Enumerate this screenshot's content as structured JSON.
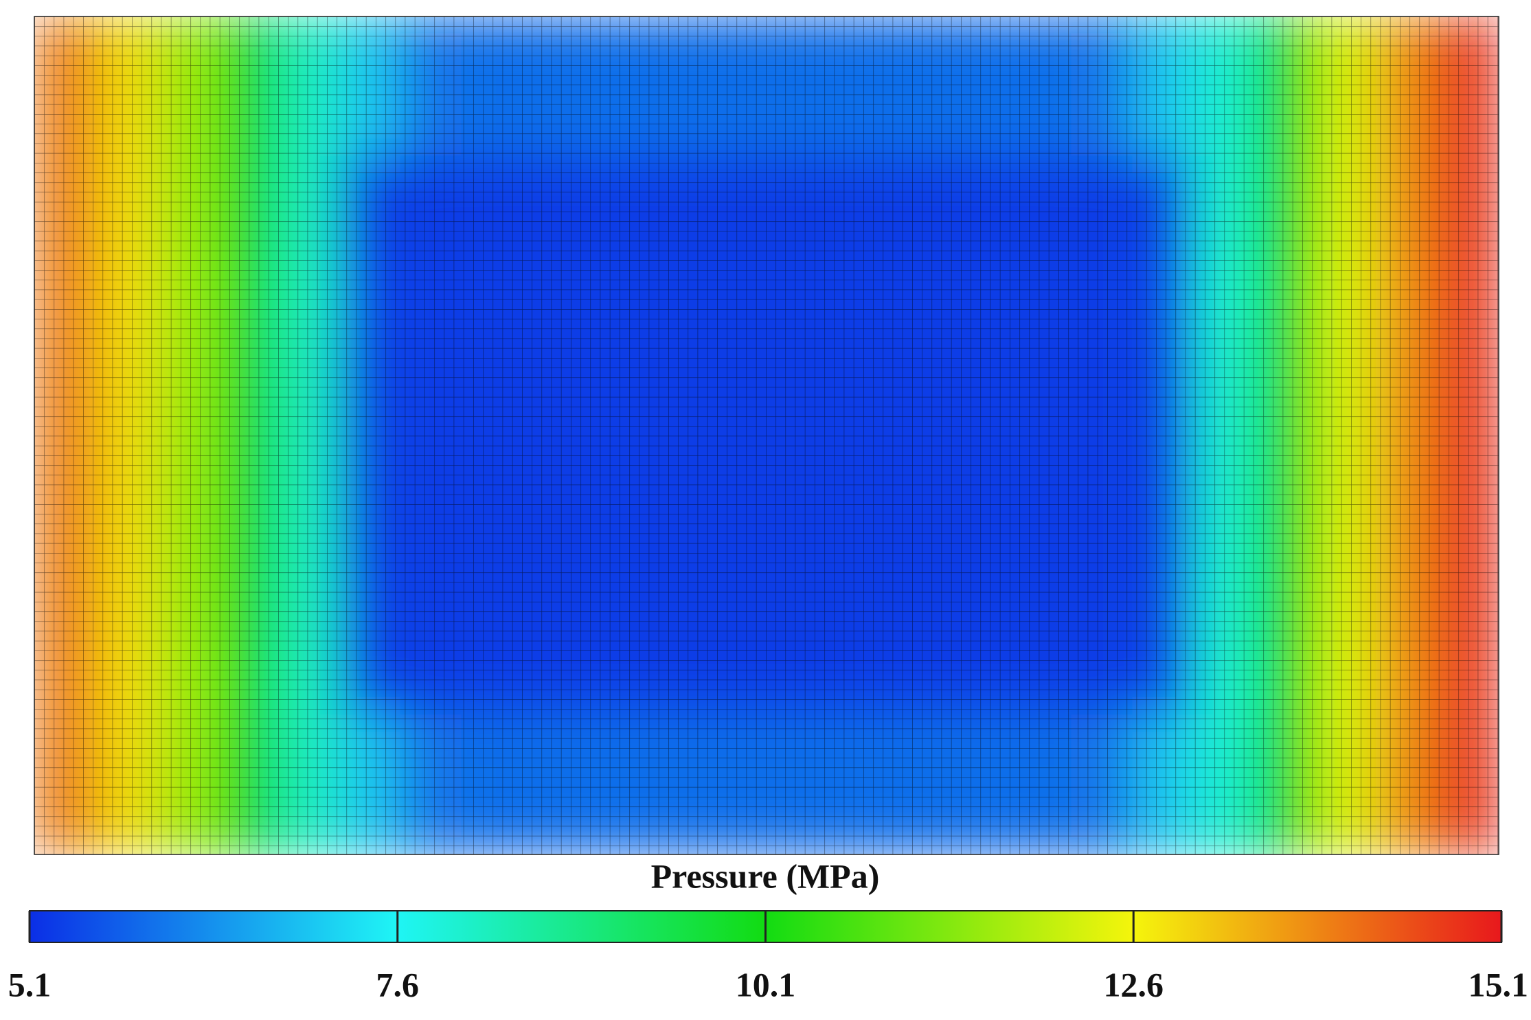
{
  "chart_data": {
    "type": "heatmap",
    "title": "Pressure (MPa)",
    "colorscale": [
      "#0b2ee6",
      "#1ff5f5",
      "#12dc12",
      "#f5f50c",
      "#e8181c"
    ],
    "zlim": [
      5.1,
      15.1
    ],
    "zticks": [
      5.1,
      7.6,
      10.1,
      12.6,
      15.1
    ],
    "z": [
      [
        14.0,
        12.9,
        11.6,
        10.0,
        8.2,
        7.0,
        6.0,
        5.9,
        5.9,
        5.9,
        5.9,
        5.9,
        5.9,
        5.9,
        5.9,
        5.9,
        5.9,
        6.0,
        7.0,
        8.0,
        10.0,
        12.3,
        13.8,
        14.8
      ],
      [
        14.0,
        12.9,
        11.6,
        10.0,
        8.2,
        7.0,
        6.0,
        5.9,
        5.9,
        5.9,
        5.9,
        5.9,
        5.9,
        5.9,
        5.9,
        5.9,
        5.9,
        6.0,
        7.0,
        8.0,
        10.0,
        12.3,
        13.8,
        14.8
      ],
      [
        14.0,
        12.9,
        11.6,
        10.0,
        8.2,
        5.4,
        5.3,
        5.3,
        5.3,
        5.3,
        5.3,
        5.3,
        5.3,
        5.3,
        5.3,
        5.3,
        5.3,
        5.3,
        5.4,
        8.0,
        10.0,
        12.3,
        13.8,
        14.8
      ],
      [
        14.0,
        12.9,
        11.6,
        10.0,
        8.2,
        5.4,
        5.3,
        5.3,
        5.3,
        5.3,
        5.3,
        5.3,
        5.3,
        5.3,
        5.3,
        5.3,
        5.3,
        5.3,
        5.4,
        8.0,
        10.0,
        12.3,
        13.8,
        14.8
      ],
      [
        14.0,
        12.9,
        11.6,
        10.0,
        8.2,
        5.4,
        5.3,
        5.3,
        5.3,
        5.3,
        5.3,
        5.3,
        5.3,
        5.3,
        5.3,
        5.3,
        5.3,
        5.3,
        5.4,
        8.0,
        10.0,
        12.3,
        13.8,
        14.8
      ],
      [
        14.0,
        12.9,
        11.6,
        10.0,
        8.2,
        5.4,
        5.3,
        5.3,
        5.3,
        5.3,
        5.3,
        5.3,
        5.3,
        5.3,
        5.3,
        5.3,
        5.3,
        5.3,
        5.4,
        8.0,
        10.0,
        12.3,
        13.8,
        14.8
      ],
      [
        14.0,
        12.9,
        11.6,
        10.0,
        8.2,
        5.4,
        5.3,
        5.3,
        5.3,
        5.3,
        5.3,
        5.3,
        5.3,
        5.3,
        5.3,
        5.3,
        5.3,
        5.3,
        5.4,
        8.0,
        10.0,
        12.3,
        13.8,
        14.8
      ],
      [
        14.0,
        12.9,
        11.6,
        10.0,
        8.2,
        5.4,
        5.3,
        5.3,
        5.3,
        5.3,
        5.3,
        5.3,
        5.3,
        5.3,
        5.3,
        5.3,
        5.3,
        5.3,
        5.4,
        8.0,
        10.0,
        12.3,
        13.8,
        14.8
      ],
      [
        14.0,
        12.9,
        11.6,
        10.0,
        8.2,
        5.4,
        5.3,
        5.3,
        5.3,
        5.3,
        5.3,
        5.3,
        5.3,
        5.3,
        5.3,
        5.3,
        5.3,
        5.3,
        5.4,
        8.0,
        10.0,
        12.3,
        13.8,
        14.8
      ],
      [
        14.0,
        12.9,
        11.6,
        10.0,
        8.2,
        5.4,
        5.3,
        5.3,
        5.3,
        5.3,
        5.3,
        5.3,
        5.3,
        5.3,
        5.3,
        5.3,
        5.3,
        5.3,
        5.4,
        8.0,
        10.0,
        12.3,
        13.8,
        14.8
      ],
      [
        14.0,
        12.9,
        11.6,
        10.0,
        8.2,
        7.0,
        6.0,
        5.9,
        5.9,
        5.9,
        5.9,
        5.9,
        5.9,
        5.9,
        5.9,
        5.9,
        5.9,
        6.0,
        7.0,
        8.0,
        10.0,
        12.3,
        13.8,
        14.8
      ],
      [
        14.0,
        12.9,
        11.6,
        10.0,
        8.2,
        7.0,
        6.0,
        5.9,
        5.9,
        5.9,
        5.9,
        5.9,
        5.9,
        5.9,
        5.9,
        5.9,
        5.9,
        6.0,
        7.0,
        8.0,
        10.0,
        12.3,
        13.8,
        14.8
      ]
    ]
  }
}
